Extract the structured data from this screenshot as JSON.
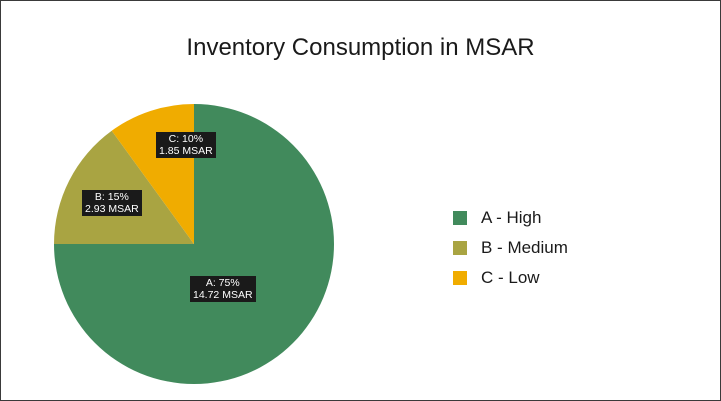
{
  "chart_data": {
    "type": "pie",
    "title": "Inventory Consumption in MSAR",
    "slices": [
      {
        "key": "A",
        "legend": "A -  High",
        "percent": 75,
        "value": 14.72,
        "label_pct": "A: 75%",
        "label_val": "14.72 MSAR",
        "color": "#418a5c"
      },
      {
        "key": "B",
        "legend": "B -  Medium",
        "percent": 15,
        "value": 2.93,
        "label_pct": "B: 15%",
        "label_val": "2.93 MSAR",
        "color": "#a9a442"
      },
      {
        "key": "C",
        "legend": "C -  Low",
        "percent": 10,
        "value": 1.85,
        "label_pct": "C: 10%",
        "label_val": "1.85 MSAR",
        "color": "#f0ac00"
      }
    ],
    "legend_position": "right"
  }
}
